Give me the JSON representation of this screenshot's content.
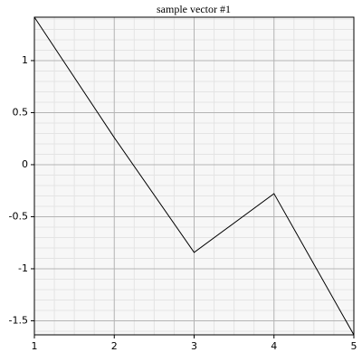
{
  "chart_data": {
    "type": "line",
    "title": "sample vector #1",
    "x": [
      1,
      2,
      3,
      4,
      5
    ],
    "series": [
      {
        "color": "#000000",
        "values": [
          1.417,
          0.26,
          -0.843,
          -0.278,
          -1.635
        ]
      }
    ],
    "xlim": [
      1,
      5
    ],
    "xticks": [
      1,
      2,
      3,
      4,
      5
    ],
    "ylim": [
      -1.635,
      1.417
    ],
    "yticks": [
      -1.5,
      -1,
      -0.5,
      0,
      0.5,
      1
    ],
    "grid": true
  }
}
